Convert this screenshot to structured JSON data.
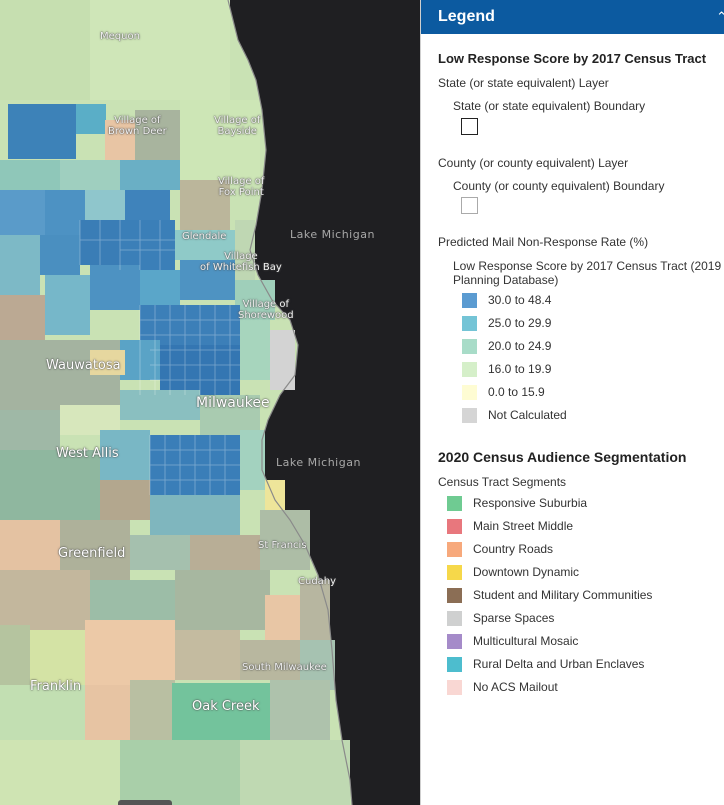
{
  "map": {
    "places": [
      {
        "id": "mequon",
        "text": "Mequon"
      },
      {
        "id": "brown-deer",
        "text": "Village of\nBrown Deer"
      },
      {
        "id": "bayside",
        "text": "Village of\nBayside"
      },
      {
        "id": "fox-point",
        "text": "Village of\nFox Point"
      },
      {
        "id": "glendale",
        "text": "Glendale"
      },
      {
        "id": "whitefish-bay",
        "text": "Village\nof Whitefish Bay"
      },
      {
        "id": "shorewood",
        "text": "Village of\nShorewood"
      },
      {
        "id": "wauwatosa",
        "text": "Wauwatosa"
      },
      {
        "id": "milwaukee",
        "text": "Milwaukee"
      },
      {
        "id": "west-allis",
        "text": "West Allis"
      },
      {
        "id": "st-francis",
        "text": "St Francis"
      },
      {
        "id": "greenfield",
        "text": "Greenfield"
      },
      {
        "id": "cudahy",
        "text": "Cudahy"
      },
      {
        "id": "south-milwaukee",
        "text": "South Milwaukee"
      },
      {
        "id": "franklin",
        "text": "Franklin"
      },
      {
        "id": "oak-creek",
        "text": "Oak Creek"
      }
    ],
    "lake_labels": [
      "Lake Michigan",
      "Lake Michigan"
    ]
  },
  "legend": {
    "title": "Legend",
    "collapse_icon": "double-chevron-up-icon",
    "layer1_title": "Low Response Score by 2017 Census Tract",
    "state_layer": "State (or state equivalent) Layer",
    "state_boundary": "State (or state equivalent) Boundary",
    "county_layer": "County (or county equivalent) Layer",
    "county_boundary": "County (or county equivalent) Boundary",
    "rate_title": "Predicted Mail Non-Response Rate (%)",
    "score_title": "Low Response Score by 2017 Census Tract (2019\nPlanning Database)",
    "score_classes": [
      {
        "label": "30.0 to 48.4",
        "color": "#5b9bd1"
      },
      {
        "label": "25.0 to 29.9",
        "color": "#74c4d6"
      },
      {
        "label": "20.0 to 24.9",
        "color": "#a8dcc8"
      },
      {
        "label": "16.0 to 19.9",
        "color": "#d5efc9"
      },
      {
        "label": "0.0 to 15.9",
        "color": "#fefcd3"
      },
      {
        "label": "Not Calculated",
        "color": "#d5d5d5"
      }
    ],
    "layer2_title": "2020 Census Audience Segmentation",
    "segments_title": "Census Tract Segments",
    "segments": [
      {
        "label": "Responsive Suburbia",
        "color": "#6fcb92"
      },
      {
        "label": "Main Street Middle",
        "color": "#e8777d"
      },
      {
        "label": "Country Roads",
        "color": "#f7a97c"
      },
      {
        "label": "Downtown Dynamic",
        "color": "#f6d84a"
      },
      {
        "label": "Student and Military Communities",
        "color": "#8b6e55"
      },
      {
        "label": "Sparse Spaces",
        "color": "#cfd0d0"
      },
      {
        "label": "Multicultural Mosaic",
        "color": "#a58bc9"
      },
      {
        "label": "Rural Delta and Urban Enclaves",
        "color": "#4dbdce"
      },
      {
        "label": "No ACS Mailout",
        "color": "#f9d7d3"
      }
    ]
  }
}
